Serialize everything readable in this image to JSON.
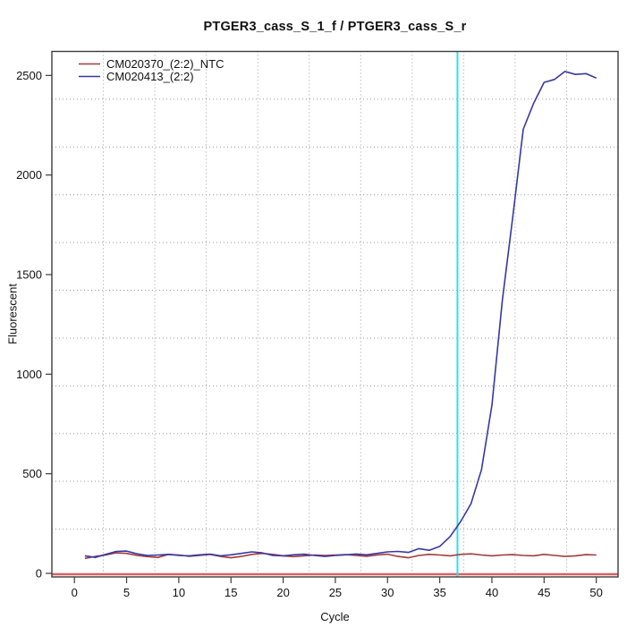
{
  "chart": {
    "title": "PTGER3_cass_S_1_f / PTGER3_cass_S_r",
    "xlabel": "Cycle",
    "ylabel": "Fluorescent"
  },
  "chart_data": {
    "type": "line",
    "title": "PTGER3_cass_S_1_f / PTGER3_cass_S_r",
    "xlabel": "Cycle",
    "ylabel": "Fluorescent",
    "x": [
      1,
      2,
      3,
      4,
      5,
      6,
      7,
      8,
      9,
      10,
      11,
      12,
      13,
      14,
      15,
      16,
      17,
      18,
      19,
      20,
      21,
      22,
      23,
      24,
      25,
      26,
      27,
      28,
      29,
      30,
      31,
      32,
      33,
      34,
      35,
      36,
      37,
      38,
      39,
      40,
      41,
      42,
      43,
      44,
      45,
      46,
      47,
      48,
      49,
      50
    ],
    "series": [
      {
        "name": "CM020370_(2:2)_NTC",
        "color": "#a23a3a",
        "values": [
          75,
          85,
          92,
          103,
          100,
          90,
          84,
          80,
          95,
          92,
          86,
          90,
          95,
          85,
          78,
          85,
          95,
          100,
          95,
          88,
          84,
          88,
          92,
          90,
          92,
          94,
          90,
          86,
          92,
          96,
          85,
          78,
          90,
          95,
          92,
          88,
          95,
          98,
          92,
          88,
          92,
          94,
          90,
          88,
          95,
          90,
          85,
          88,
          94,
          92
        ]
      },
      {
        "name": "CM020413_(2:2)",
        "color": "#3737a3",
        "values": [
          88,
          80,
          95,
          110,
          112,
          98,
          90,
          92,
          95,
          90,
          88,
          93,
          96,
          88,
          93,
          100,
          108,
          103,
          90,
          88,
          93,
          96,
          90,
          85,
          90,
          93,
          97,
          93,
          100,
          108,
          110,
          105,
          124,
          116,
          135,
          185,
          260,
          350,
          520,
          845,
          1370,
          1790,
          2230,
          2360,
          2465,
          2480,
          2520,
          2505,
          2509,
          2487
        ]
      }
    ],
    "x_ticks": [
      0,
      5,
      10,
      15,
      20,
      25,
      30,
      35,
      40,
      45,
      50
    ],
    "y_ticks": [
      0,
      500,
      1000,
      1500,
      2000,
      2500
    ],
    "ylim": [
      -18,
      2620
    ],
    "xlim": [
      -2.2,
      52.1
    ],
    "grid": {
      "nx": 11,
      "ny": 11,
      "style": "dotted",
      "color": "#9a9a9a"
    },
    "threshold_line": {
      "value": 0,
      "color": "#d96060"
    },
    "ct_vline": {
      "x": 36.7,
      "color": "#2ee0ee"
    },
    "legend_position": "top-left"
  }
}
